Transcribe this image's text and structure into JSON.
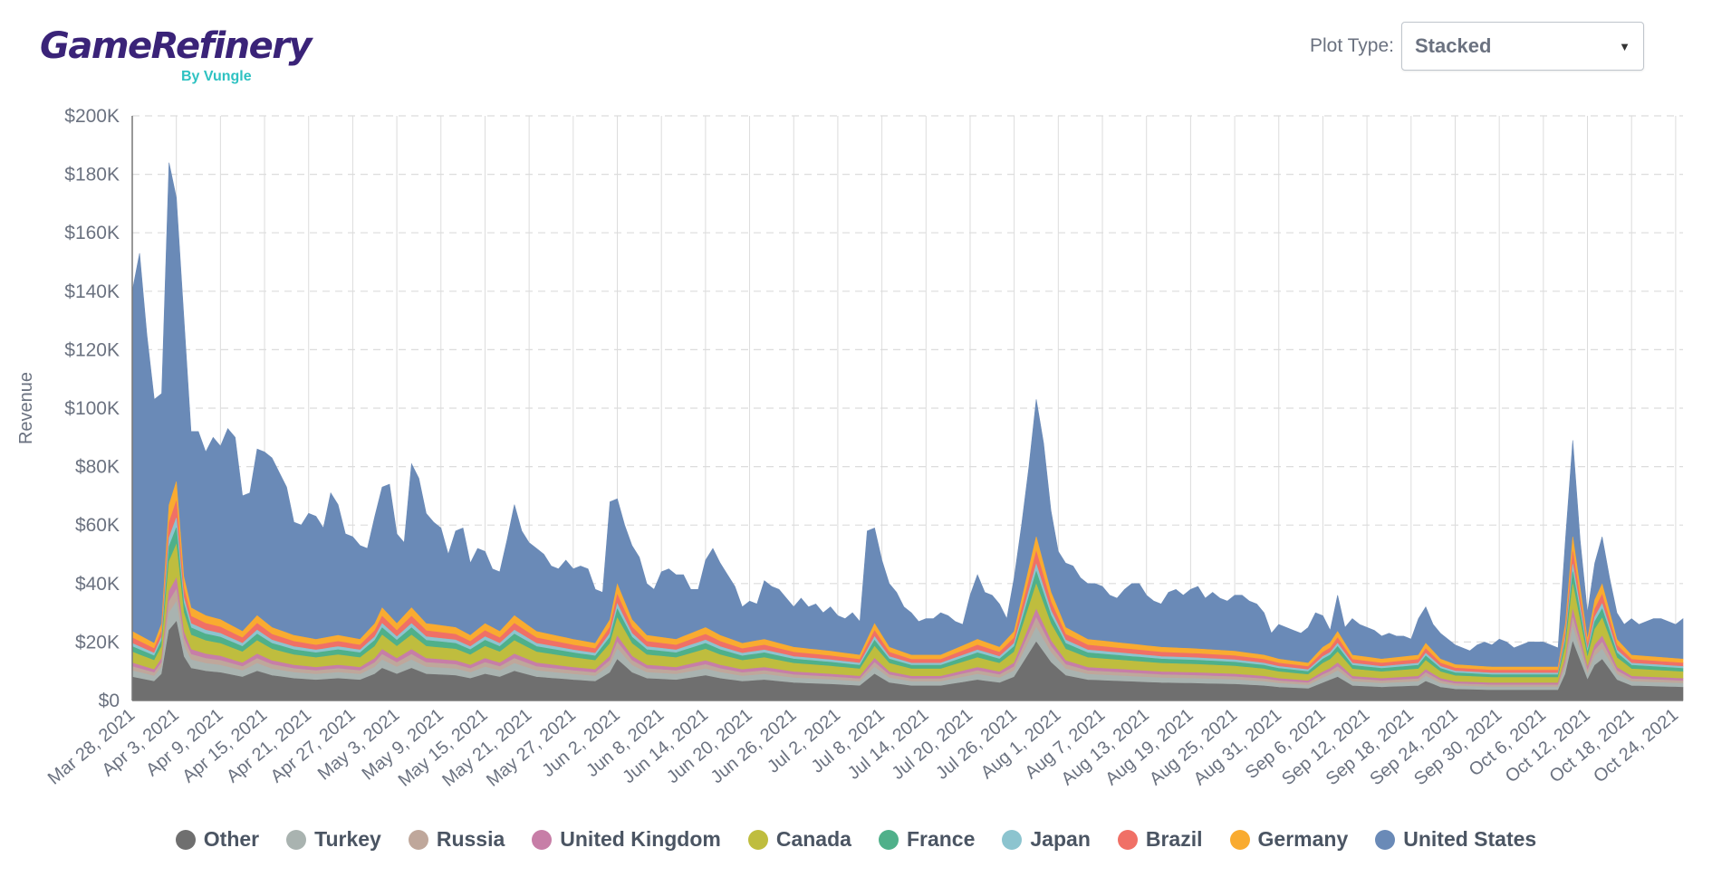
{
  "brand": {
    "name": "GameRefinery",
    "by": "By Vungle"
  },
  "controls": {
    "plot_type_label": "Plot Type:",
    "plot_type_value": "Stacked"
  },
  "chart_data": {
    "type": "area",
    "stacked": true,
    "ylabel": "Revenue",
    "ylim": [
      0,
      200000
    ],
    "yticks": [
      0,
      20000,
      40000,
      60000,
      80000,
      100000,
      120000,
      140000,
      160000,
      180000,
      200000
    ],
    "ytick_labels": [
      "$0",
      "$20K",
      "$40K",
      "$60K",
      "$80K",
      "$100K",
      "$120K",
      "$140K",
      "$160K",
      "$180K",
      "$200K"
    ],
    "x_start": "2021-03-28",
    "x_end": "2021-10-25",
    "x_tick_labels": [
      "Mar 28, 2021",
      "Apr 3, 2021",
      "Apr 9, 2021",
      "Apr 15, 2021",
      "Apr 21, 2021",
      "Apr 27, 2021",
      "May 3, 2021",
      "May 9, 2021",
      "May 15, 2021",
      "May 21, 2021",
      "May 27, 2021",
      "Jun 2, 2021",
      "Jun 8, 2021",
      "Jun 14, 2021",
      "Jun 20, 2021",
      "Jun 26, 2021",
      "Jul 2, 2021",
      "Jul 8, 2021",
      "Jul 14, 2021",
      "Jul 20, 2021",
      "Jul 26, 2021",
      "Aug 1, 2021",
      "Aug 7, 2021",
      "Aug 13, 2021",
      "Aug 19, 2021",
      "Aug 25, 2021",
      "Aug 31, 2021",
      "Sep 6, 2021",
      "Sep 12, 2021",
      "Sep 18, 2021",
      "Sep 24, 2021",
      "Sep 30, 2021",
      "Oct 6, 2021",
      "Oct 12, 2021",
      "Oct 18, 2021",
      "Oct 24, 2021"
    ],
    "x_tick_interval_days": 6,
    "total_keypoints": [
      [
        0,
        140000
      ],
      [
        1,
        153000
      ],
      [
        2,
        125000
      ],
      [
        3,
        103000
      ],
      [
        4,
        105000
      ],
      [
        5,
        184000
      ],
      [
        6,
        172000
      ],
      [
        7,
        132000
      ],
      [
        8,
        92000
      ],
      [
        9,
        92000
      ],
      [
        10,
        85000
      ],
      [
        11,
        90000
      ],
      [
        12,
        87000
      ],
      [
        13,
        93000
      ],
      [
        14,
        90000
      ],
      [
        15,
        70000
      ],
      [
        16,
        71000
      ],
      [
        17,
        86000
      ],
      [
        18,
        85000
      ],
      [
        19,
        83000
      ],
      [
        20,
        78000
      ],
      [
        21,
        73000
      ],
      [
        22,
        61000
      ],
      [
        23,
        60000
      ],
      [
        24,
        64000
      ],
      [
        25,
        63000
      ],
      [
        26,
        59000
      ],
      [
        27,
        71000
      ],
      [
        28,
        67000
      ],
      [
        29,
        57000
      ],
      [
        30,
        56000
      ],
      [
        31,
        53000
      ],
      [
        32,
        52000
      ],
      [
        33,
        63000
      ],
      [
        34,
        73000
      ],
      [
        35,
        74000
      ],
      [
        36,
        57000
      ],
      [
        37,
        54000
      ],
      [
        38,
        81000
      ],
      [
        39,
        76000
      ],
      [
        40,
        64000
      ],
      [
        41,
        61000
      ],
      [
        42,
        59000
      ],
      [
        43,
        50000
      ],
      [
        44,
        58000
      ],
      [
        45,
        59000
      ],
      [
        46,
        47000
      ],
      [
        47,
        52000
      ],
      [
        48,
        51000
      ],
      [
        49,
        45000
      ],
      [
        50,
        44000
      ],
      [
        51,
        55000
      ],
      [
        52,
        67000
      ],
      [
        53,
        58000
      ],
      [
        54,
        54000
      ],
      [
        55,
        52000
      ],
      [
        56,
        50000
      ],
      [
        57,
        46000
      ],
      [
        58,
        45000
      ],
      [
        59,
        48000
      ],
      [
        60,
        45000
      ],
      [
        61,
        46000
      ],
      [
        62,
        45000
      ],
      [
        63,
        38000
      ],
      [
        64,
        37000
      ],
      [
        65,
        68000
      ],
      [
        66,
        69000
      ],
      [
        67,
        60000
      ],
      [
        68,
        53000
      ],
      [
        69,
        49000
      ],
      [
        70,
        40000
      ],
      [
        71,
        38000
      ],
      [
        72,
        44000
      ],
      [
        73,
        45000
      ],
      [
        74,
        43000
      ],
      [
        75,
        43000
      ],
      [
        76,
        38000
      ],
      [
        77,
        38000
      ],
      [
        78,
        48000
      ],
      [
        79,
        52000
      ],
      [
        80,
        47000
      ],
      [
        81,
        43000
      ],
      [
        82,
        39000
      ],
      [
        83,
        32000
      ],
      [
        84,
        34000
      ],
      [
        85,
        33000
      ],
      [
        86,
        41000
      ],
      [
        87,
        39000
      ],
      [
        88,
        38000
      ],
      [
        89,
        35000
      ],
      [
        90,
        32000
      ],
      [
        91,
        35000
      ],
      [
        92,
        32000
      ],
      [
        93,
        33000
      ],
      [
        94,
        30000
      ],
      [
        95,
        32000
      ],
      [
        96,
        29000
      ],
      [
        97,
        28000
      ],
      [
        98,
        30000
      ],
      [
        99,
        27000
      ],
      [
        100,
        58000
      ],
      [
        101,
        59000
      ],
      [
        102,
        48000
      ],
      [
        103,
        40000
      ],
      [
        104,
        37000
      ],
      [
        105,
        32000
      ],
      [
        106,
        30000
      ],
      [
        107,
        27000
      ],
      [
        108,
        28000
      ],
      [
        109,
        28000
      ],
      [
        110,
        30000
      ],
      [
        111,
        29000
      ],
      [
        112,
        27000
      ],
      [
        113,
        26000
      ],
      [
        114,
        36000
      ],
      [
        115,
        43000
      ],
      [
        116,
        37000
      ],
      [
        117,
        36000
      ],
      [
        118,
        33000
      ],
      [
        119,
        28000
      ],
      [
        120,
        42000
      ],
      [
        121,
        60000
      ],
      [
        122,
        80000
      ],
      [
        123,
        103000
      ],
      [
        124,
        88000
      ],
      [
        125,
        65000
      ],
      [
        126,
        51000
      ],
      [
        127,
        47000
      ],
      [
        128,
        46000
      ],
      [
        129,
        42000
      ],
      [
        130,
        40000
      ],
      [
        131,
        40000
      ],
      [
        132,
        39000
      ],
      [
        133,
        36000
      ],
      [
        134,
        35000
      ],
      [
        135,
        38000
      ],
      [
        136,
        40000
      ],
      [
        137,
        40000
      ],
      [
        138,
        36000
      ],
      [
        139,
        34000
      ],
      [
        140,
        33000
      ],
      [
        141,
        37000
      ],
      [
        142,
        38000
      ],
      [
        143,
        36000
      ],
      [
        144,
        38000
      ],
      [
        145,
        39000
      ],
      [
        146,
        35000
      ],
      [
        147,
        37000
      ],
      [
        148,
        35000
      ],
      [
        149,
        34000
      ],
      [
        150,
        36000
      ],
      [
        151,
        36000
      ],
      [
        152,
        34000
      ],
      [
        153,
        33000
      ],
      [
        154,
        30000
      ],
      [
        155,
        23000
      ],
      [
        156,
        26000
      ],
      [
        157,
        25000
      ],
      [
        158,
        24000
      ],
      [
        159,
        23000
      ],
      [
        160,
        25000
      ],
      [
        161,
        30000
      ],
      [
        162,
        29000
      ],
      [
        163,
        24000
      ],
      [
        164,
        36000
      ],
      [
        165,
        25000
      ],
      [
        166,
        28000
      ],
      [
        167,
        26000
      ],
      [
        168,
        25000
      ],
      [
        169,
        24000
      ],
      [
        170,
        22000
      ],
      [
        171,
        23000
      ],
      [
        172,
        22000
      ],
      [
        173,
        22000
      ],
      [
        174,
        21000
      ],
      [
        175,
        28000
      ],
      [
        176,
        32000
      ],
      [
        177,
        26000
      ],
      [
        178,
        23000
      ],
      [
        179,
        21000
      ],
      [
        180,
        19000
      ],
      [
        181,
        18000
      ],
      [
        182,
        17000
      ],
      [
        183,
        19000
      ],
      [
        184,
        20000
      ],
      [
        185,
        19000
      ],
      [
        186,
        21000
      ],
      [
        187,
        20000
      ],
      [
        188,
        18000
      ],
      [
        189,
        19000
      ],
      [
        190,
        20000
      ],
      [
        191,
        20000
      ],
      [
        192,
        20000
      ],
      [
        193,
        19000
      ],
      [
        194,
        18000
      ],
      [
        195,
        55000
      ],
      [
        196,
        89000
      ],
      [
        197,
        55000
      ],
      [
        198,
        30000
      ],
      [
        199,
        47000
      ],
      [
        200,
        56000
      ],
      [
        201,
        42000
      ],
      [
        202,
        30000
      ],
      [
        203,
        26000
      ],
      [
        204,
        28000
      ],
      [
        205,
        26000
      ],
      [
        206,
        27000
      ],
      [
        207,
        28000
      ],
      [
        208,
        28000
      ],
      [
        209,
        27000
      ],
      [
        210,
        26000
      ],
      [
        211,
        28000
      ]
    ],
    "other_keypoints": [
      [
        0,
        8000
      ],
      [
        2,
        7000
      ],
      [
        3,
        6500
      ],
      [
        4,
        9000
      ],
      [
        5,
        24000
      ],
      [
        6,
        27000
      ],
      [
        7,
        15000
      ],
      [
        8,
        11000
      ],
      [
        10,
        10000
      ],
      [
        12,
        9500
      ],
      [
        15,
        8000
      ],
      [
        17,
        10000
      ],
      [
        19,
        8500
      ],
      [
        22,
        7500
      ],
      [
        25,
        7000
      ],
      [
        28,
        7500
      ],
      [
        31,
        7000
      ],
      [
        33,
        9000
      ],
      [
        34,
        11000
      ],
      [
        36,
        9000
      ],
      [
        38,
        11000
      ],
      [
        40,
        9000
      ],
      [
        44,
        8500
      ],
      [
        46,
        7500
      ],
      [
        48,
        9000
      ],
      [
        50,
        8000
      ],
      [
        52,
        10000
      ],
      [
        55,
        8000
      ],
      [
        60,
        7000
      ],
      [
        63,
        6500
      ],
      [
        65,
        9500
      ],
      [
        66,
        14000
      ],
      [
        68,
        9500
      ],
      [
        70,
        7500
      ],
      [
        74,
        7000
      ],
      [
        78,
        8500
      ],
      [
        80,
        7500
      ],
      [
        83,
        6500
      ],
      [
        86,
        7000
      ],
      [
        90,
        6000
      ],
      [
        95,
        5500
      ],
      [
        99,
        5000
      ],
      [
        101,
        9000
      ],
      [
        103,
        6000
      ],
      [
        106,
        5000
      ],
      [
        110,
        5000
      ],
      [
        115,
        7000
      ],
      [
        118,
        6000
      ],
      [
        120,
        8000
      ],
      [
        123,
        20000
      ],
      [
        125,
        13000
      ],
      [
        127,
        8500
      ],
      [
        130,
        7000
      ],
      [
        135,
        6500
      ],
      [
        140,
        6000
      ],
      [
        145,
        5800
      ],
      [
        150,
        5500
      ],
      [
        154,
        5000
      ],
      [
        156,
        4500
      ],
      [
        160,
        4000
      ],
      [
        162,
        6000
      ],
      [
        164,
        8000
      ],
      [
        166,
        5000
      ],
      [
        170,
        4500
      ],
      [
        175,
        5000
      ],
      [
        176,
        6500
      ],
      [
        178,
        4500
      ],
      [
        180,
        3800
      ],
      [
        185,
        3500
      ],
      [
        190,
        3500
      ],
      [
        194,
        3500
      ],
      [
        195,
        9000
      ],
      [
        196,
        20000
      ],
      [
        198,
        7000
      ],
      [
        199,
        12000
      ],
      [
        200,
        14000
      ],
      [
        202,
        7000
      ],
      [
        204,
        5000
      ],
      [
        211,
        4500
      ]
    ],
    "series": [
      {
        "name": "Other",
        "color": "#6f6f6f",
        "share": null
      },
      {
        "name": "Turkey",
        "color": "#a9b3b0",
        "share": 0.14
      },
      {
        "name": "Russia",
        "color": "#bfa79b",
        "share": 0.09
      },
      {
        "name": "United Kingdom",
        "color": "#c77ea7",
        "share": 0.08
      },
      {
        "name": "Canada",
        "color": "#bfbd3e",
        "share": 0.24
      },
      {
        "name": "France",
        "color": "#4fb08a",
        "share": 0.12
      },
      {
        "name": "Japan",
        "color": "#8cc4cf",
        "share": 0.07
      },
      {
        "name": "Brazil",
        "color": "#f07066",
        "share": 0.12
      },
      {
        "name": "Germany",
        "color": "#f9ab30",
        "share": 0.14
      },
      {
        "name": "United States",
        "color": "#6a8ab7",
        "share": null
      }
    ],
    "grid": true,
    "legend_position": "bottom"
  },
  "axis_color": "#777777",
  "grid_color": "#dcdcdc"
}
